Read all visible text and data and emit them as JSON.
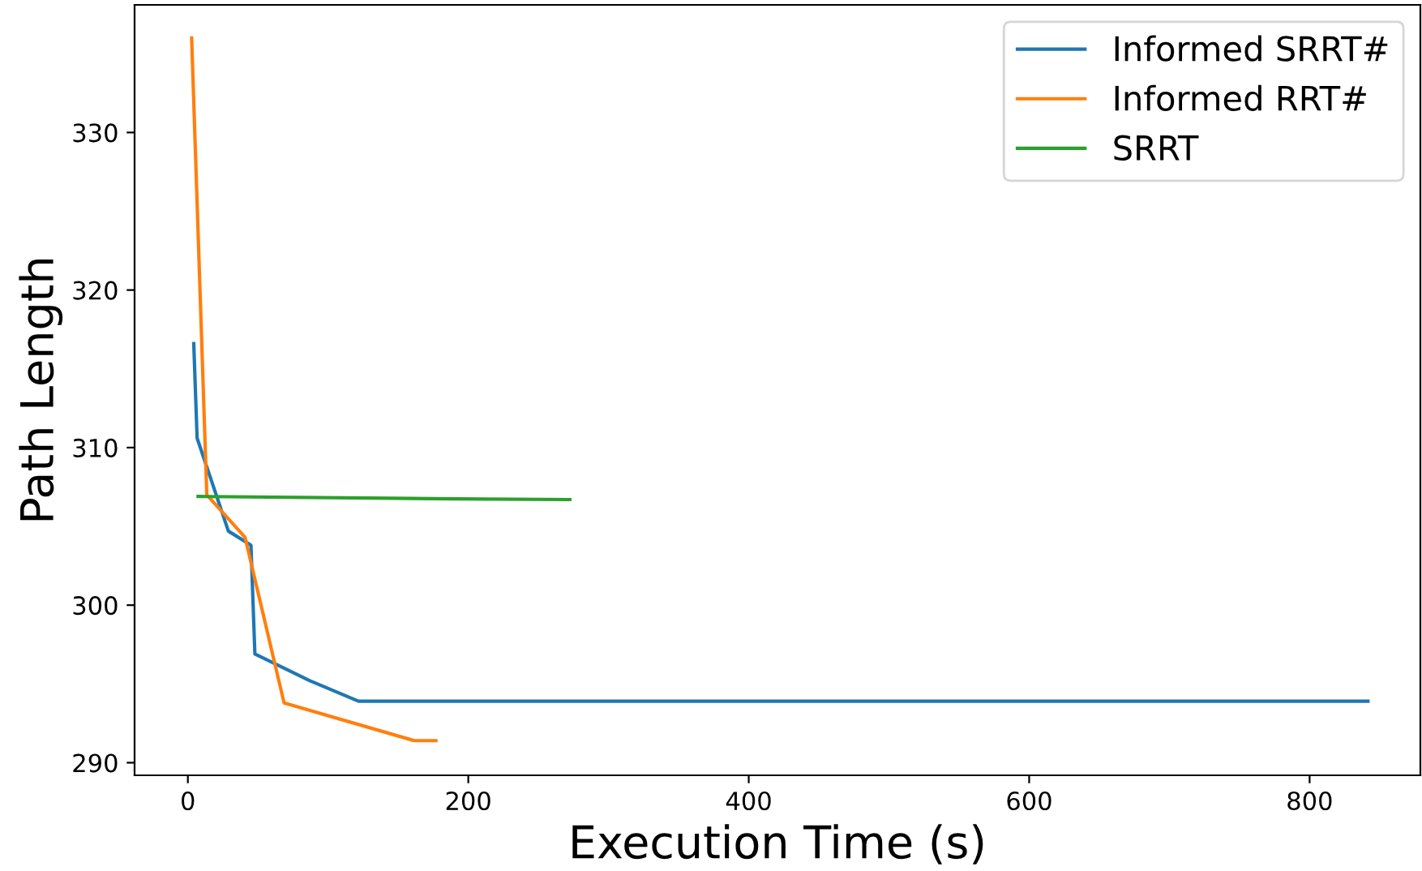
{
  "chart_data": {
    "type": "line",
    "xlabel": "Execution Time (s)",
    "ylabel": "Path Length",
    "xlim": [
      -38,
      879
    ],
    "xticks": [
      0,
      200,
      400,
      600,
      800
    ],
    "ylim": [
      289.2,
      338.1
    ],
    "yticks": [
      290,
      300,
      310,
      320,
      330
    ],
    "grid": false,
    "legend": "top right",
    "series": [
      {
        "name": "Informed SRRT#",
        "color": "#1f77b4",
        "x": [
          4.2,
          6.6,
          28.9,
          45,
          47.8,
          87,
          121.7,
          841.6
        ],
        "values": [
          316.6,
          310.6,
          304.7,
          303.8,
          296.9,
          295.2,
          293.9,
          293.9
        ]
      },
      {
        "name": "Informed RRT#",
        "color": "#ff7f0e",
        "x": [
          2.7,
          13.5,
          40.8,
          68.6,
          161.5,
          176.9
        ],
        "values": [
          336,
          307.0,
          304.3,
          293.8,
          291.4,
          291.4
        ]
      },
      {
        "name": "SRRT",
        "color": "#2ca02c",
        "x": [
          7.3,
          190,
          272.4
        ],
        "values": [
          306.9,
          306.75,
          306.7
        ]
      }
    ]
  }
}
